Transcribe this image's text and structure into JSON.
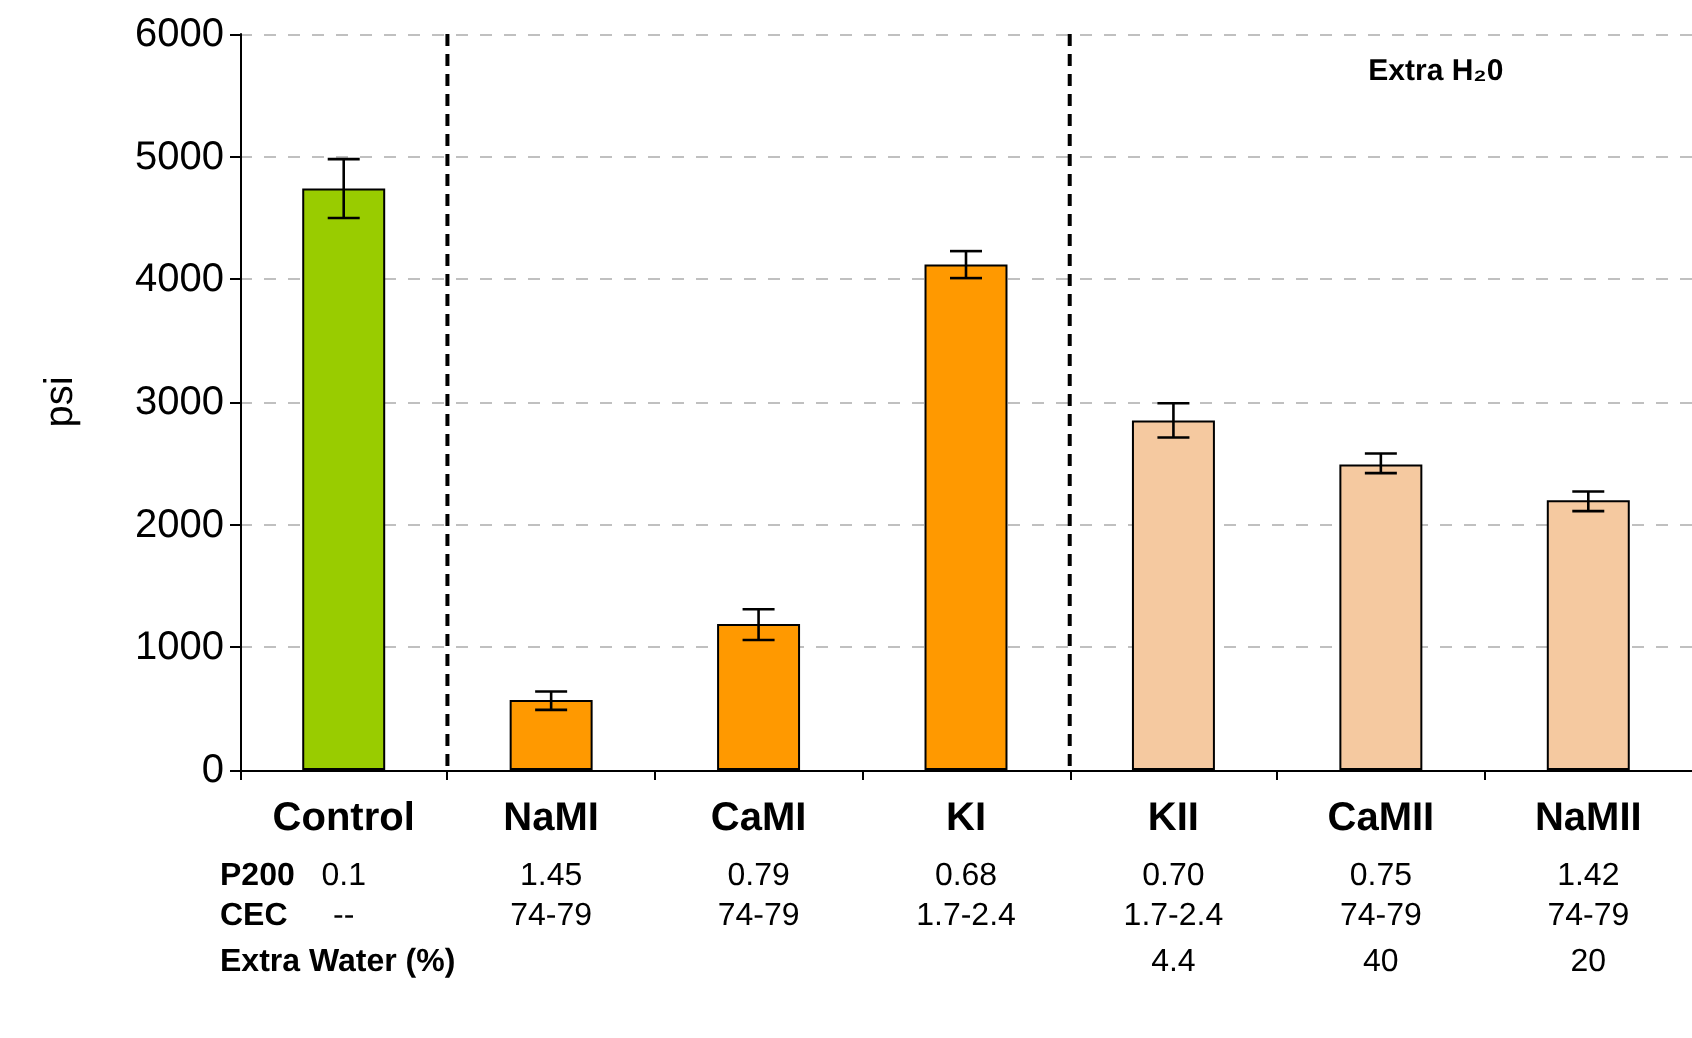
{
  "chart_data": {
    "type": "bar",
    "ylabel": "psi",
    "categories": [
      "Control",
      "NaMI",
      "CaMI",
      "KI",
      "KII",
      "CaMII",
      "NaMII"
    ],
    "values": [
      4740,
      570,
      1190,
      4120,
      2850,
      2490,
      2200
    ],
    "errors": [
      [
        4500,
        4980
      ],
      [
        490,
        640
      ],
      [
        1060,
        1310
      ],
      [
        4010,
        4230
      ],
      [
        2710,
        2990
      ],
      [
        2420,
        2580
      ],
      [
        2110,
        2270
      ]
    ],
    "colors": [
      "#99cc00",
      "#ff9900",
      "#ff9900",
      "#ff9900",
      "#f5c9a0",
      "#f5c9a0",
      "#f5c9a0"
    ],
    "ylim": [
      0,
      6000
    ],
    "yticks": [
      0,
      1000,
      2000,
      3000,
      4000,
      5000,
      6000
    ],
    "grid": "y",
    "annotations": [
      "Extra H₂0",
      [
        "P200",
        "0.1",
        "1.45",
        "0.79",
        "0.68",
        "0.70",
        "0.75",
        "1.42"
      ],
      [
        "CEC",
        "--",
        "74-79",
        "74-79",
        "1.7-2.4",
        "1.7-2.4",
        "74-79",
        "74-79"
      ],
      [
        "Extra Water (%)",
        null,
        null,
        null,
        null,
        "4.4",
        "40",
        "20"
      ]
    ]
  }
}
